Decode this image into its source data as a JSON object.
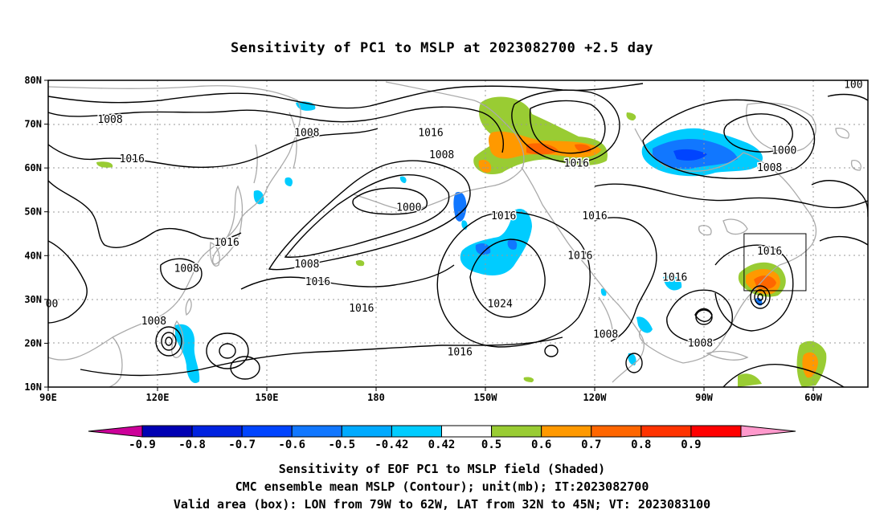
{
  "title": "Sensitivity of PC1 to MSLP at 2023082700 +2.5 day",
  "map": {
    "lat_labels": [
      "80N",
      "70N",
      "60N",
      "50N",
      "40N",
      "30N",
      "20N",
      "10N"
    ],
    "lon_labels": [
      "90E",
      "120E",
      "150E",
      "180",
      "150W",
      "120W",
      "90W",
      "60W"
    ],
    "lat_range": [
      10,
      80
    ],
    "lon_range": [
      90,
      315
    ],
    "grid": "dotted",
    "valid_box": {
      "lon": [
        -79,
        -62
      ],
      "lat": [
        32,
        45
      ]
    },
    "contour_labels": [
      {
        "text": "1008",
        "lon": 107,
        "lat": 71
      },
      {
        "text": "1008",
        "lon": 161,
        "lat": 68
      },
      {
        "text": "1016",
        "lon": 113,
        "lat": 62
      },
      {
        "text": "1016",
        "lon": 195,
        "lat": 68
      },
      {
        "text": "1008",
        "lon": 198,
        "lat": 63
      },
      {
        "text": "1000",
        "lon": 189,
        "lat": 51
      },
      {
        "text": "1016",
        "lon": 215,
        "lat": 49
      },
      {
        "text": "1016",
        "lon": 235,
        "lat": 61
      },
      {
        "text": "1016",
        "lon": 240,
        "lat": 49
      },
      {
        "text": "1016",
        "lon": 139,
        "lat": 43
      },
      {
        "text": "1008",
        "lon": 128,
        "lat": 37
      },
      {
        "text": "1008",
        "lon": 161,
        "lat": 38
      },
      {
        "text": "1016",
        "lon": 164,
        "lat": 34
      },
      {
        "text": "1016",
        "lon": 176,
        "lat": 28
      },
      {
        "text": "1024",
        "lon": 214,
        "lat": 29
      },
      {
        "text": "1016",
        "lon": 236,
        "lat": 40
      },
      {
        "text": "1016",
        "lon": 203,
        "lat": 18
      },
      {
        "text": "1016",
        "lon": 262,
        "lat": 35
      },
      {
        "text": "1008",
        "lon": 119,
        "lat": 25
      },
      {
        "text": "1008",
        "lon": 243,
        "lat": 22
      },
      {
        "text": "1008",
        "lon": 269,
        "lat": 20
      },
      {
        "text": "1000",
        "lon": 292,
        "lat": 64
      },
      {
        "text": "1008",
        "lon": 288,
        "lat": 60
      },
      {
        "text": "1016",
        "lon": 288,
        "lat": 41
      },
      {
        "text": "100",
        "lon": 311,
        "lat": 79
      },
      {
        "text": "00",
        "lon": 91,
        "lat": 29
      }
    ]
  },
  "colorbar": {
    "labels": [
      "-0.9",
      "-0.8",
      "-0.7",
      "-0.6",
      "-0.5",
      "-0.42",
      "0.42",
      "0.5",
      "0.6",
      "0.7",
      "0.8",
      "0.9"
    ],
    "colors": [
      "#cc0099",
      "#0000b3",
      "#0022e0",
      "#0044ff",
      "#1177ff",
      "#00aaff",
      "#00ccff",
      "#ffffff",
      "#99cc33",
      "#ff9900",
      "#ff6600",
      "#ff3300",
      "#ff0000",
      "#ff99cc"
    ]
  },
  "captions": [
    "Sensitivity of EOF PC1 to MSLP field (Shaded)",
    "CMC ensemble mean MSLP (Contour); unit(mb); IT:2023082700",
    "Valid area (box): LON from 79W to 62W, LAT from 32N to 45N; VT: 2023083100"
  ]
}
